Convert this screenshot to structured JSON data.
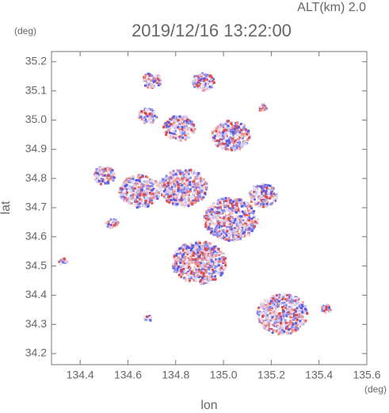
{
  "chart_data": {
    "type": "map",
    "title": "2019/12/16 13:22:00",
    "subtitle": "ALT(km) 2.0",
    "y_unit": "(deg)",
    "x_unit": "(deg)",
    "x_label": "lon",
    "y_label": "lat",
    "xlim": [
      134.28,
      135.6
    ],
    "xticks": [
      134.4,
      134.6,
      134.8,
      {
        "value": 135,
        "label": "135.0"
      },
      135.2,
      135.4,
      135.6
    ],
    "ylim": [
      34.162,
      35.235
    ],
    "yticks": [
      34.2,
      34.3,
      34.4,
      34.5,
      34.6,
      34.7,
      34.8,
      34.9,
      {
        "value": 35,
        "label": "35.0"
      },
      35.1,
      35.2
    ]
  }
}
